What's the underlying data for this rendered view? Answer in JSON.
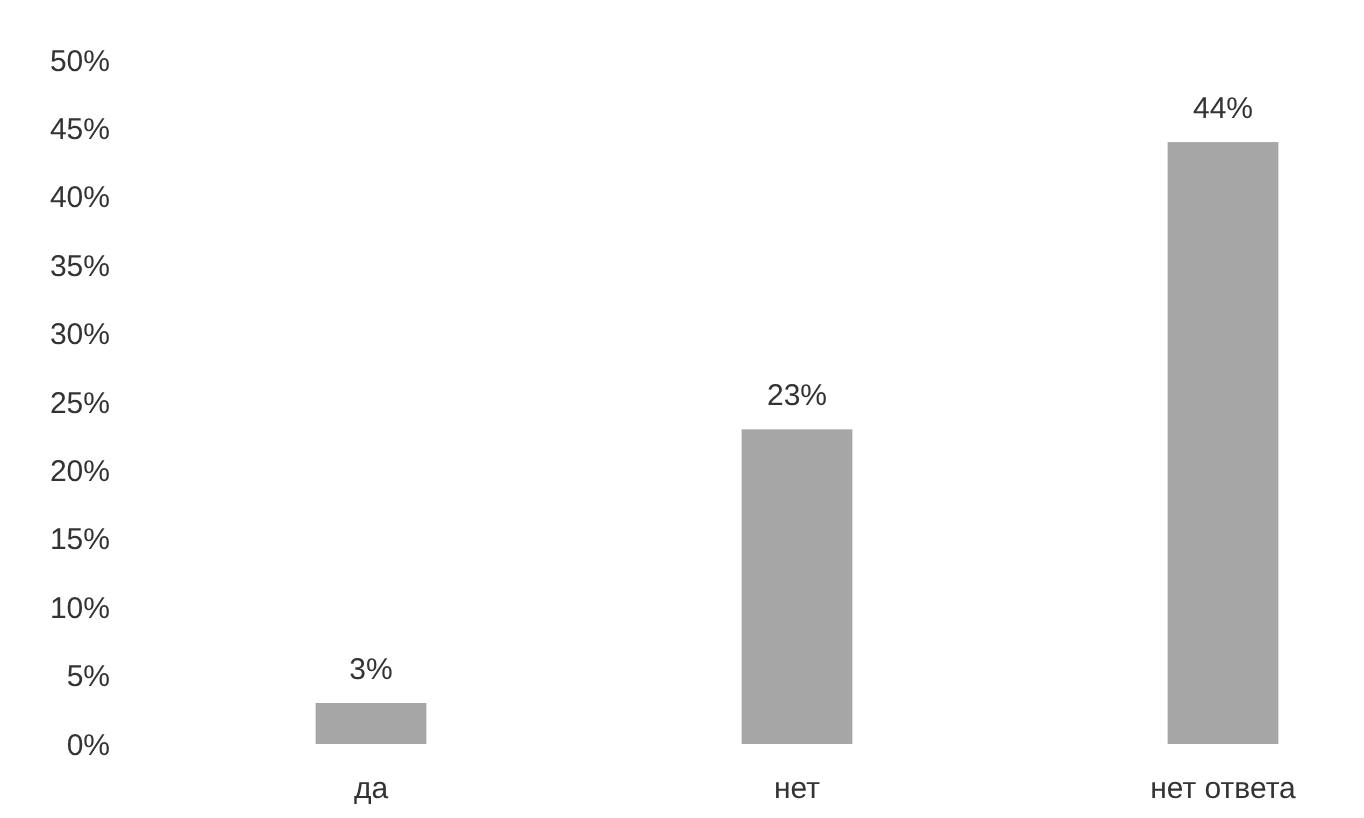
{
  "chart_data": {
    "type": "bar",
    "categories": [
      "да",
      "нет",
      "нет ответа"
    ],
    "values": [
      3,
      23,
      44
    ],
    "value_labels": [
      "3%",
      "23%",
      "44%"
    ],
    "color": "#a6a6a6",
    "ylim": [
      0,
      50
    ],
    "yticks": [
      {
        "value": 0,
        "label": "0%"
      },
      {
        "value": 5,
        "label": "5%"
      },
      {
        "value": 10,
        "label": "10%"
      },
      {
        "value": 15,
        "label": "15%"
      },
      {
        "value": 20,
        "label": "20%"
      },
      {
        "value": 25,
        "label": "25%"
      },
      {
        "value": 30,
        "label": "30%"
      },
      {
        "value": 35,
        "label": "35%"
      },
      {
        "value": 40,
        "label": "40%"
      },
      {
        "value": 45,
        "label": "45%"
      },
      {
        "value": 50,
        "label": "50%"
      }
    ],
    "grid": false
  }
}
